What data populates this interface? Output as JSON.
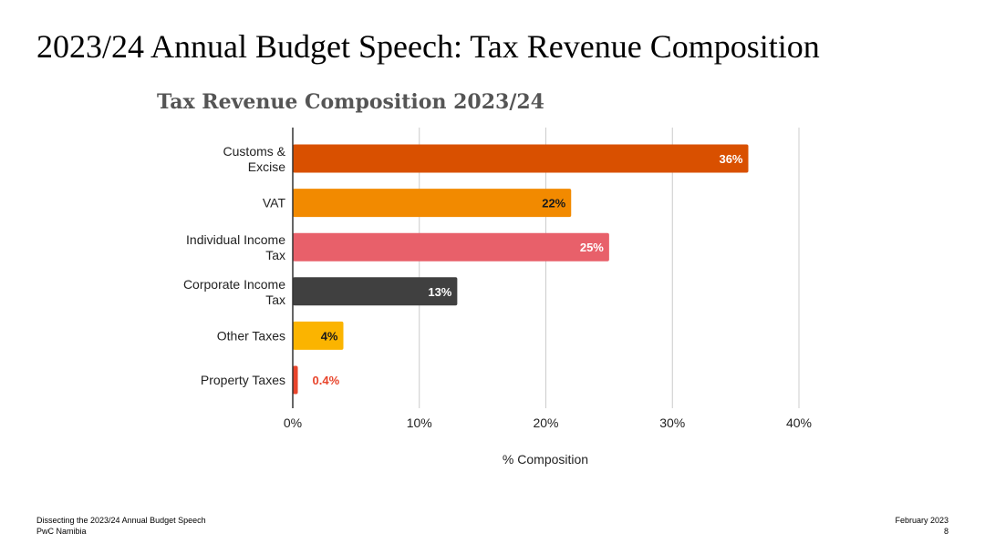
{
  "slide": {
    "title": "2023/24 Annual Budget Speech: Tax Revenue Composition"
  },
  "footer": {
    "left_line1": "Dissecting the 2023/24 Annual Budget Speech",
    "left_line2": "PwC Namibia",
    "date": "February 2023",
    "page_number": "8"
  },
  "chart_data": {
    "type": "bar",
    "orientation": "horizontal",
    "title": "Tax Revenue Composition 2023/24",
    "xlabel": "% Composition",
    "ylabel": "",
    "categories": [
      "Customs & Excise",
      "VAT",
      "Individual Income Tax",
      "Corporate Income Tax",
      "Other Taxes",
      "Property Taxes"
    ],
    "values": [
      36,
      22,
      25,
      13,
      4,
      0.4
    ],
    "data_labels": [
      "36%",
      "22%",
      "25%",
      "13%",
      "4%",
      "0.4%"
    ],
    "colors": [
      "#d95000",
      "#f28a00",
      "#e8606a",
      "#404040",
      "#fbb400",
      "#e8452c"
    ],
    "label_colors": [
      "#ffffff",
      "#1a1a1a",
      "#ffffff",
      "#ffffff",
      "#1a1a1a",
      "#e8452c"
    ],
    "xlim": [
      0,
      40
    ],
    "xticks": [
      0,
      10,
      20,
      30,
      40
    ],
    "xtick_labels": [
      "0%",
      "10%",
      "20%",
      "30%",
      "40%"
    ],
    "grid": true,
    "legend": "none"
  }
}
